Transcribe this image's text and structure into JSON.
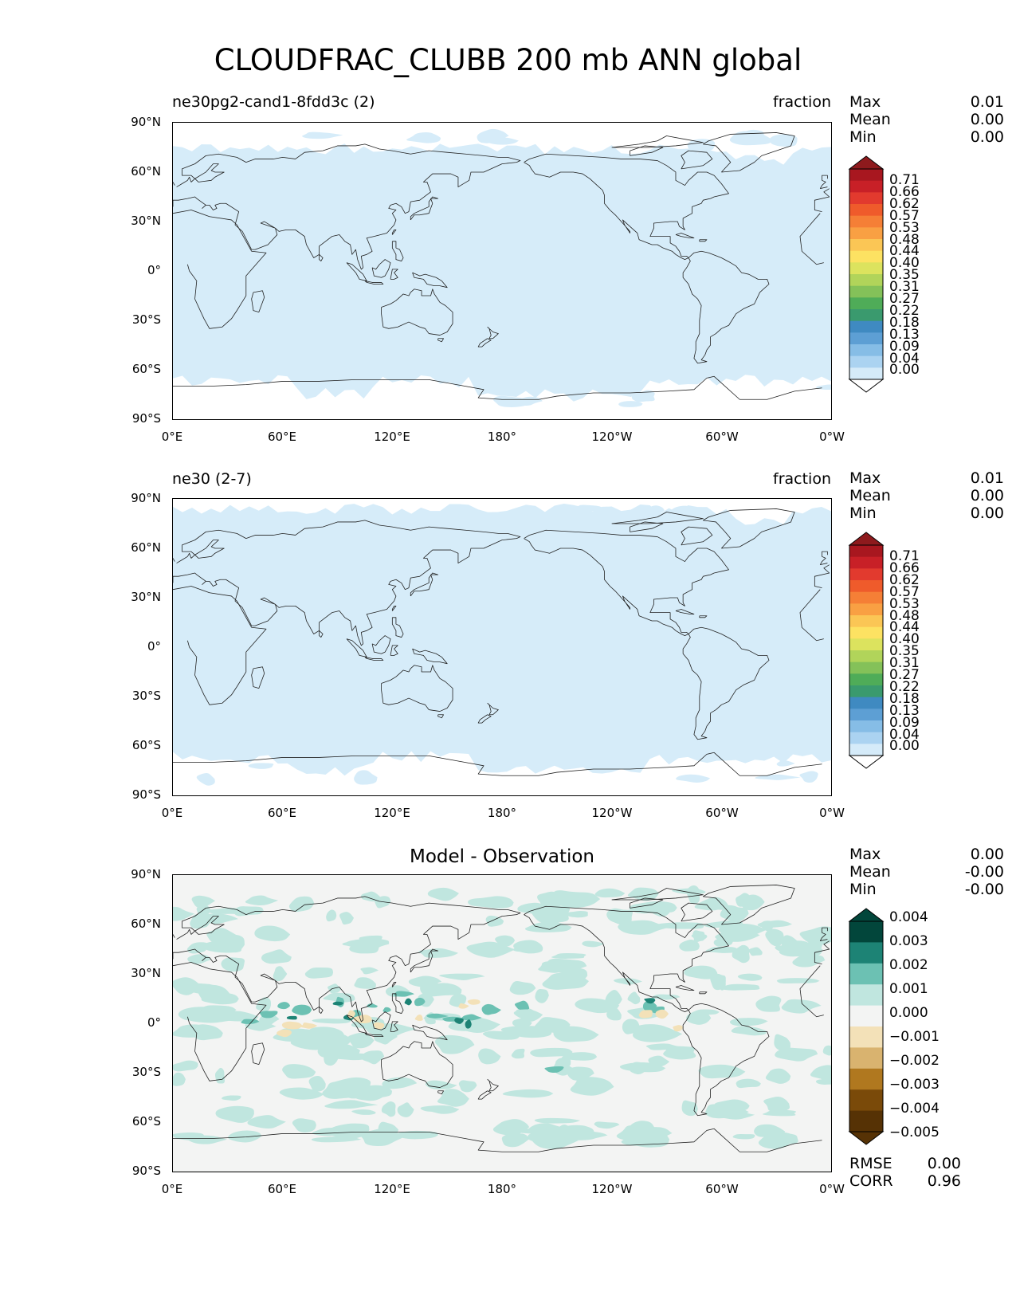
{
  "title": "CLOUDFRAC_CLUBB 200 mb ANN global",
  "lat_ticks": [
    "90°N",
    "60°N",
    "30°N",
    "0°",
    "30°S",
    "60°S",
    "90°S"
  ],
  "lon_ticks": [
    "0°E",
    "60°E",
    "120°E",
    "180°",
    "120°W",
    "60°W",
    "0°W"
  ],
  "panels": [
    {
      "left_title": "ne30pg2-cand1-8fdd3c (2)",
      "right_title": "fraction",
      "stats": [
        {
          "label": "Max",
          "value": "0.01"
        },
        {
          "label": "Mean",
          "value": "0.00"
        },
        {
          "label": "Min",
          "value": "0.00"
        }
      ],
      "colorbar_labels": [
        "0.71",
        "0.66",
        "0.62",
        "0.57",
        "0.53",
        "0.48",
        "0.44",
        "0.40",
        "0.35",
        "0.31",
        "0.27",
        "0.22",
        "0.18",
        "0.13",
        "0.09",
        "0.04",
        "0.00"
      ],
      "field_color": "#d6ecf9"
    },
    {
      "left_title": "ne30 (2-7)",
      "right_title": "fraction",
      "stats": [
        {
          "label": "Max",
          "value": "0.01"
        },
        {
          "label": "Mean",
          "value": "0.00"
        },
        {
          "label": "Min",
          "value": "0.00"
        }
      ],
      "colorbar_labels": [
        "0.71",
        "0.66",
        "0.62",
        "0.57",
        "0.53",
        "0.48",
        "0.44",
        "0.40",
        "0.35",
        "0.31",
        "0.27",
        "0.22",
        "0.18",
        "0.13",
        "0.09",
        "0.04",
        "0.00"
      ],
      "field_color": "#d6ecf9"
    },
    {
      "center_title": "Model - Observation",
      "stats": [
        {
          "label": "Max",
          "value": "0.00"
        },
        {
          "label": "Mean",
          "value": "-0.00"
        },
        {
          "label": "Min",
          "value": "-0.00"
        }
      ],
      "colorbar_labels": [
        "0.004",
        "0.003",
        "0.002",
        "0.001",
        "0.000",
        "−0.001",
        "−0.002",
        "−0.003",
        "−0.004",
        "−0.005"
      ],
      "metrics": [
        {
          "label": "RMSE",
          "value": "0.00"
        },
        {
          "label": "CORR",
          "value": "0.96"
        }
      ],
      "field_color": "#f3f4f3"
    }
  ],
  "colors": {
    "seq": [
      "#8e1a1d",
      "#a8171f",
      "#c82027",
      "#e23a2e",
      "#ef5b2b",
      "#f57f36",
      "#f9a043",
      "#fbc655",
      "#fde262",
      "#dce35e",
      "#b1d45a",
      "#84c159",
      "#4fac58",
      "#3a9a6e",
      "#3f8ac1",
      "#5d9fd4",
      "#86bde6",
      "#abd3f1",
      "#d5ebf9",
      "#ffffff"
    ],
    "div": [
      "#02463b",
      "#1d8375",
      "#6cc1b3",
      "#c0e6df",
      "#f3f4f3",
      "#f3e1b8",
      "#d9b36f",
      "#b0781f",
      "#7a4a09",
      "#563205"
    ],
    "diff_pos_light": "#c0e6df",
    "diff_pos_mid": "#6cc1b3",
    "diff_pos_dark": "#1d8375",
    "diff_neg_light": "#f3e1b8"
  }
}
